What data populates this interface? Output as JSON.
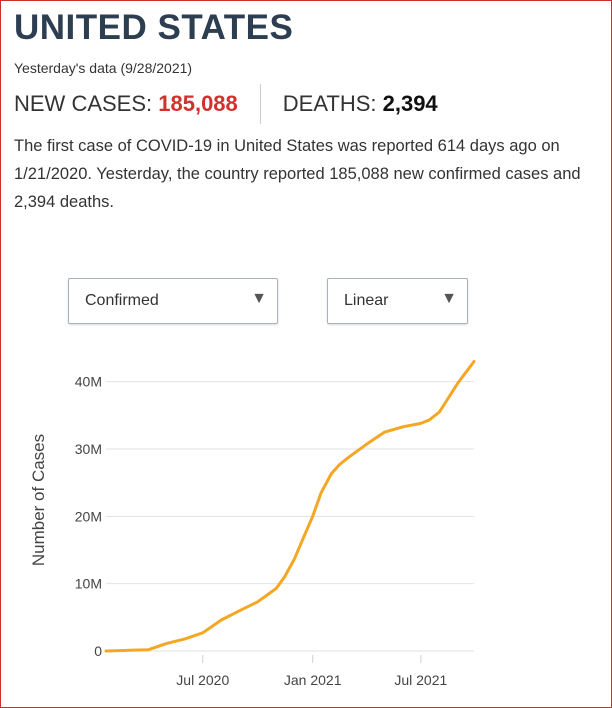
{
  "header": {
    "title": "UNITED STATES",
    "subtitle": "Yesterday's data (9/28/2021)",
    "new_cases_label": "NEW CASES: ",
    "new_cases_value": "185,088",
    "deaths_label": "DEATHS: ",
    "deaths_value": "2,394"
  },
  "description": {
    "part1": "The first case of COVID-19 in United States was reported 614 days ago on 1/21/2020. Yesterday, the country reported 185,088 new confirmed cases and 2,394 deaths."
  },
  "controls": {
    "type_select": "Confirmed",
    "scale_select": "Linear"
  },
  "colors": {
    "line": "#f5a623",
    "accent_red": "#d0312d",
    "title": "#2c3e50"
  },
  "chart_data": {
    "type": "line",
    "title": "",
    "xlabel": "",
    "ylabel": "Number of Cases",
    "ylim": [
      0,
      45000000
    ],
    "yticks": [
      0,
      10000000,
      20000000,
      30000000,
      40000000
    ],
    "ytick_labels": [
      "0",
      "10M",
      "20M",
      "30M",
      "40M"
    ],
    "xticks": [
      "2020-07-01",
      "2021-01-01",
      "2021-07-01"
    ],
    "xtick_labels": [
      "Jul 2020",
      "Jan 2021",
      "Jul 2021"
    ],
    "xlim": [
      "2020-01-21",
      "2021-09-28"
    ],
    "grid": true,
    "series": [
      {
        "x": [
          "2020-01-21",
          "2020-03-01",
          "2020-04-01",
          "2020-05-01",
          "2020-06-01",
          "2020-07-01",
          "2020-08-01",
          "2020-09-01",
          "2020-10-01",
          "2020-11-01",
          "2020-11-15",
          "2020-12-01",
          "2020-12-15",
          "2021-01-01",
          "2021-01-15",
          "2021-02-01",
          "2021-02-15",
          "2021-03-01",
          "2021-04-01",
          "2021-05-01",
          "2021-06-01",
          "2021-07-01",
          "2021-07-15",
          "2021-08-01",
          "2021-09-01",
          "2021-09-28"
        ],
        "values": [
          0,
          100000,
          200000,
          1100000,
          1800000,
          2700000,
          4600000,
          6000000,
          7300000,
          9300000,
          11000000,
          13600000,
          16500000,
          20000000,
          23500000,
          26300000,
          27700000,
          28700000,
          30700000,
          32500000,
          33300000,
          33800000,
          34300000,
          35500000,
          39800000,
          43000000
        ]
      }
    ]
  }
}
